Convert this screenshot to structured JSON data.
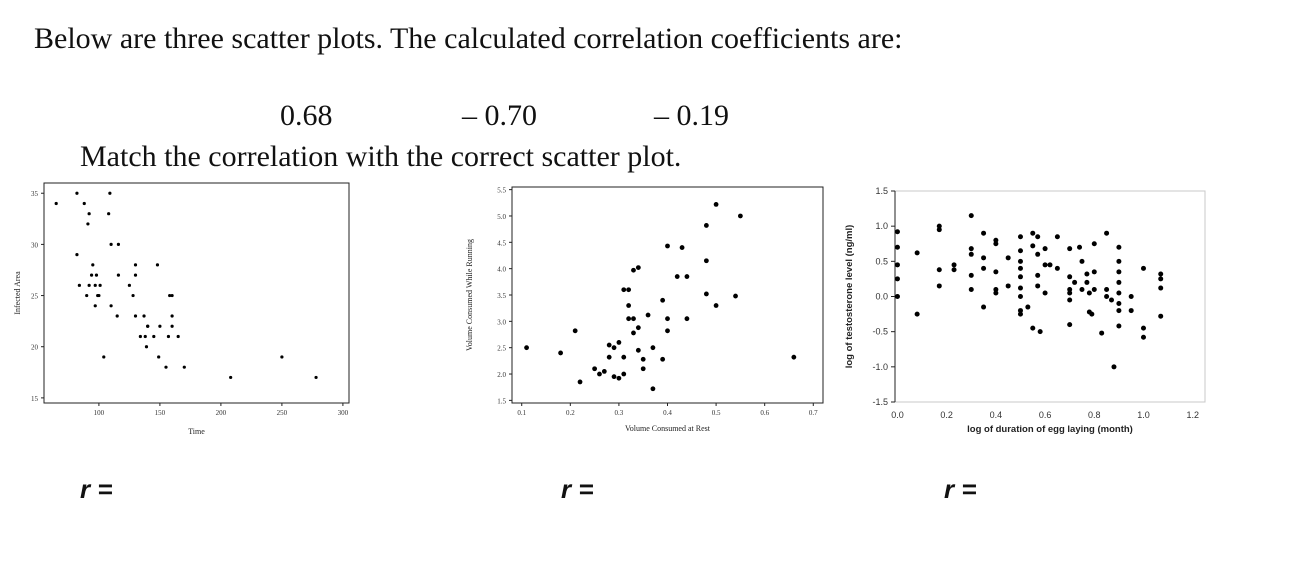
{
  "question": {
    "number": ".",
    "text": "Below are three scatter plots. The calculated correlation coefficients are:",
    "coefficients": [
      "0.68",
      "– 0.70",
      "– 0.19"
    ],
    "instruction": "Match the correlation with the correct scatter plot.",
    "answer_labels": [
      "r =",
      "r =",
      "r ="
    ]
  },
  "chart_data": [
    {
      "type": "scatter",
      "xlabel": "Time",
      "ylabel": "Infected Area",
      "xlim": [
        55,
        305
      ],
      "ylim": [
        14.5,
        36
      ],
      "xticks": [
        100,
        150,
        200,
        250,
        300
      ],
      "yticks": [
        15,
        20,
        25,
        30,
        35
      ],
      "xtick_labels": [
        "100",
        "150",
        "200",
        "250",
        "300"
      ],
      "ytick_labels": [
        "15",
        "20",
        "25",
        "30",
        "35"
      ],
      "points": [
        [
          65,
          34
        ],
        [
          82,
          35
        ],
        [
          82,
          29
        ],
        [
          84,
          26
        ],
        [
          88,
          34
        ],
        [
          91,
          32
        ],
        [
          92,
          33
        ],
        [
          90,
          25
        ],
        [
          92,
          26
        ],
        [
          94,
          27
        ],
        [
          95,
          28
        ],
        [
          97,
          26
        ],
        [
          97,
          24
        ],
        [
          98,
          27
        ],
        [
          99,
          25
        ],
        [
          100,
          25
        ],
        [
          101,
          26
        ],
        [
          104,
          19
        ],
        [
          108,
          33
        ],
        [
          109,
          35
        ],
        [
          110,
          24
        ],
        [
          110,
          30
        ],
        [
          115,
          23
        ],
        [
          116,
          27
        ],
        [
          116,
          30
        ],
        [
          125,
          26
        ],
        [
          128,
          25
        ],
        [
          130,
          27
        ],
        [
          130,
          28
        ],
        [
          130,
          23
        ],
        [
          134,
          21
        ],
        [
          137,
          23
        ],
        [
          138,
          21
        ],
        [
          139,
          20
        ],
        [
          140,
          22
        ],
        [
          140,
          22
        ],
        [
          145,
          21
        ],
        [
          148,
          28
        ],
        [
          149,
          19
        ],
        [
          150,
          22
        ],
        [
          155,
          18
        ],
        [
          157,
          21
        ],
        [
          158,
          25
        ],
        [
          160,
          25
        ],
        [
          160,
          23
        ],
        [
          160,
          22
        ],
        [
          165,
          21
        ],
        [
          170,
          18
        ],
        [
          208,
          17
        ],
        [
          250,
          19
        ],
        [
          278,
          17
        ]
      ]
    },
    {
      "type": "scatter",
      "xlabel": "Volume Consumed at Rest",
      "ylabel": "Volume Consumed While Running",
      "xlim": [
        0.08,
        0.72
      ],
      "ylim": [
        1.45,
        5.55
      ],
      "xticks": [
        0.1,
        0.2,
        0.3,
        0.4,
        0.5,
        0.6,
        0.7
      ],
      "yticks": [
        1.5,
        2.0,
        2.5,
        3.0,
        3.5,
        4.0,
        4.5,
        5.0,
        5.5
      ],
      "xtick_labels": [
        "0.1",
        "0.2",
        "0.3",
        "0.4",
        "0.5",
        "0.6",
        "0.7"
      ],
      "ytick_labels": [
        "1.5",
        "2.0",
        "2.5",
        "3.0",
        "3.5",
        "4.0",
        "4.5",
        "5.0",
        "5.5"
      ],
      "points": [
        [
          0.11,
          2.5
        ],
        [
          0.18,
          2.4
        ],
        [
          0.21,
          2.82
        ],
        [
          0.22,
          1.85
        ],
        [
          0.25,
          2.1
        ],
        [
          0.26,
          2.0
        ],
        [
          0.27,
          2.05
        ],
        [
          0.28,
          2.55
        ],
        [
          0.28,
          2.32
        ],
        [
          0.29,
          2.5
        ],
        [
          0.29,
          1.95
        ],
        [
          0.3,
          1.92
        ],
        [
          0.3,
          2.6
        ],
        [
          0.31,
          2.32
        ],
        [
          0.31,
          2.0
        ],
        [
          0.31,
          3.6
        ],
        [
          0.32,
          3.6
        ],
        [
          0.32,
          3.3
        ],
        [
          0.32,
          3.05
        ],
        [
          0.33,
          3.05
        ],
        [
          0.33,
          2.78
        ],
        [
          0.33,
          3.97
        ],
        [
          0.34,
          4.02
        ],
        [
          0.34,
          2.88
        ],
        [
          0.34,
          2.45
        ],
        [
          0.35,
          2.1
        ],
        [
          0.35,
          2.28
        ],
        [
          0.36,
          3.12
        ],
        [
          0.37,
          2.5
        ],
        [
          0.37,
          1.72
        ],
        [
          0.39,
          2.28
        ],
        [
          0.39,
          3.4
        ],
        [
          0.4,
          3.05
        ],
        [
          0.4,
          2.82
        ],
        [
          0.4,
          4.43
        ],
        [
          0.42,
          3.85
        ],
        [
          0.43,
          4.4
        ],
        [
          0.44,
          3.85
        ],
        [
          0.44,
          3.05
        ],
        [
          0.48,
          3.52
        ],
        [
          0.48,
          4.15
        ],
        [
          0.48,
          4.82
        ],
        [
          0.5,
          5.22
        ],
        [
          0.5,
          3.3
        ],
        [
          0.54,
          3.48
        ],
        [
          0.55,
          5.0
        ],
        [
          0.66,
          2.32
        ]
      ]
    },
    {
      "type": "scatter",
      "xlabel": "log of duration of egg laying (month)",
      "ylabel": "log of testosterone level (ng/ml)",
      "xlim": [
        -0.01,
        1.25
      ],
      "ylim": [
        -1.5,
        1.5
      ],
      "xticks": [
        0.0,
        0.2,
        0.4,
        0.6,
        0.8,
        1.0,
        1.2
      ],
      "yticks": [
        -1.5,
        -1.0,
        -0.5,
        0.0,
        0.5,
        1.0,
        1.5
      ],
      "xtick_labels": [
        "0.0",
        "0.2",
        "0.4",
        "0.6",
        "0.8",
        "1.0",
        "1.2"
      ],
      "ytick_labels": [
        "-1.5",
        "-1.0",
        "-0.5",
        "0.0",
        "0.5",
        "1.0",
        "1.5"
      ],
      "points": [
        [
          0.0,
          0.92
        ],
        [
          0.0,
          0.7
        ],
        [
          0.0,
          0.45
        ],
        [
          0.0,
          0.25
        ],
        [
          0.0,
          0.0
        ],
        [
          0.08,
          0.62
        ],
        [
          0.08,
          -0.25
        ],
        [
          0.17,
          1.0
        ],
        [
          0.17,
          0.95
        ],
        [
          0.17,
          0.38
        ],
        [
          0.17,
          0.15
        ],
        [
          0.23,
          0.45
        ],
        [
          0.23,
          0.38
        ],
        [
          0.3,
          1.15
        ],
        [
          0.3,
          0.68
        ],
        [
          0.3,
          0.6
        ],
        [
          0.3,
          0.3
        ],
        [
          0.3,
          0.1
        ],
        [
          0.35,
          0.9
        ],
        [
          0.35,
          0.55
        ],
        [
          0.35,
          0.4
        ],
        [
          0.35,
          -0.15
        ],
        [
          0.4,
          0.8
        ],
        [
          0.4,
          0.75
        ],
        [
          0.4,
          0.35
        ],
        [
          0.4,
          0.1
        ],
        [
          0.4,
          0.05
        ],
        [
          0.45,
          0.55
        ],
        [
          0.45,
          0.15
        ],
        [
          0.5,
          0.85
        ],
        [
          0.5,
          0.65
        ],
        [
          0.5,
          0.5
        ],
        [
          0.5,
          0.4
        ],
        [
          0.5,
          0.28
        ],
        [
          0.5,
          0.12
        ],
        [
          0.5,
          0.0
        ],
        [
          0.5,
          -0.2
        ],
        [
          0.5,
          -0.25
        ],
        [
          0.53,
          -0.15
        ],
        [
          0.55,
          0.9
        ],
        [
          0.55,
          0.72
        ],
        [
          0.57,
          0.85
        ],
        [
          0.57,
          0.6
        ],
        [
          0.57,
          0.3
        ],
        [
          0.57,
          0.15
        ],
        [
          0.55,
          -0.45
        ],
        [
          0.58,
          -0.5
        ],
        [
          0.6,
          0.68
        ],
        [
          0.6,
          0.45
        ],
        [
          0.62,
          0.45
        ],
        [
          0.6,
          0.05
        ],
        [
          0.65,
          0.85
        ],
        [
          0.65,
          0.4
        ],
        [
          0.7,
          0.68
        ],
        [
          0.7,
          0.28
        ],
        [
          0.7,
          0.1
        ],
        [
          0.7,
          0.05
        ],
        [
          0.7,
          -0.05
        ],
        [
          0.7,
          -0.4
        ],
        [
          0.72,
          0.2
        ],
        [
          0.74,
          0.7
        ],
        [
          0.75,
          0.5
        ],
        [
          0.75,
          0.1
        ],
        [
          0.77,
          0.32
        ],
        [
          0.77,
          0.2
        ],
        [
          0.78,
          0.05
        ],
        [
          0.78,
          -0.22
        ],
        [
          0.79,
          -0.25
        ],
        [
          0.8,
          0.75
        ],
        [
          0.8,
          0.35
        ],
        [
          0.8,
          0.1
        ],
        [
          0.85,
          0.9
        ],
        [
          0.85,
          0.1
        ],
        [
          0.85,
          0.0
        ],
        [
          0.87,
          -0.05
        ],
        [
          0.88,
          -1.0
        ],
        [
          0.9,
          0.7
        ],
        [
          0.9,
          0.5
        ],
        [
          0.9,
          0.35
        ],
        [
          0.9,
          0.2
        ],
        [
          0.9,
          0.05
        ],
        [
          0.9,
          -0.1
        ],
        [
          0.9,
          -0.2
        ],
        [
          0.9,
          -0.42
        ],
        [
          0.83,
          -0.52
        ],
        [
          0.95,
          0.0
        ],
        [
          0.95,
          -0.2
        ],
        [
          1.0,
          0.4
        ],
        [
          1.0,
          -0.45
        ],
        [
          1.0,
          -0.58
        ],
        [
          1.07,
          0.32
        ],
        [
          1.07,
          0.25
        ],
        [
          1.07,
          0.12
        ],
        [
          1.07,
          -0.28
        ]
      ]
    }
  ]
}
